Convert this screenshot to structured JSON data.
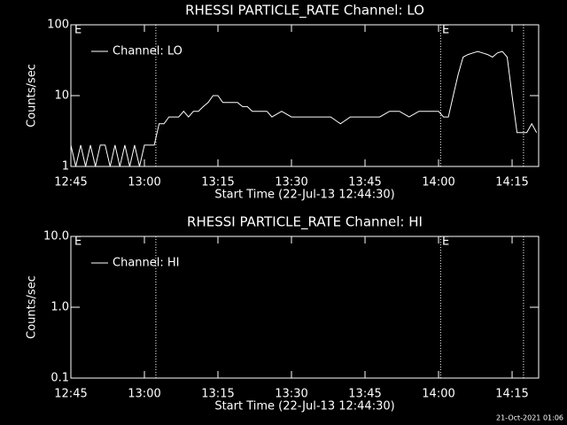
{
  "chart_data": [
    {
      "type": "line",
      "title": "RHESSI PARTICLE_RATE Channel: LO",
      "ylabel": "Counts/sec",
      "xlabel": "Start Time (22-Jul-13 12:44:30)",
      "x": [
        "12:45",
        "12:46",
        "12:47",
        "12:48",
        "12:49",
        "12:50",
        "12:51",
        "12:52",
        "12:53",
        "12:54",
        "12:55",
        "12:56",
        "12:57",
        "12:58",
        "12:59",
        "13:00",
        "13:01",
        "13:02",
        "13:03",
        "13:04",
        "13:05",
        "13:06",
        "13:07",
        "13:08",
        "13:09",
        "13:10",
        "13:11",
        "13:12",
        "13:13",
        "13:14",
        "13:15",
        "13:16",
        "13:17",
        "13:18",
        "13:19",
        "13:20",
        "13:21",
        "13:22",
        "13:23",
        "13:24",
        "13:25",
        "13:26",
        "13:28",
        "13:30",
        "13:32",
        "13:34",
        "13:36",
        "13:38",
        "13:40",
        "13:42",
        "13:44",
        "13:46",
        "13:48",
        "13:50",
        "13:52",
        "13:54",
        "13:56",
        "13:58",
        "14:00",
        "14:01",
        "14:02",
        "14:03",
        "14:04",
        "14:05",
        "14:06",
        "14:07",
        "14:08",
        "14:09",
        "14:10",
        "14:11",
        "14:12",
        "14:13",
        "14:14",
        "14:15",
        "14:16",
        "14:17",
        "14:18",
        "14:19",
        "14:20"
      ],
      "series": [
        {
          "name": "Channel: LO",
          "color": "#ffffff",
          "values": [
            2,
            1,
            2,
            1,
            2,
            1,
            2,
            2,
            1,
            2,
            1,
            2,
            1,
            2,
            1,
            2,
            2,
            2,
            4,
            4,
            5,
            5,
            5,
            6,
            5,
            6,
            6,
            7,
            8,
            10,
            10,
            8,
            8,
            8,
            8,
            7,
            7,
            6,
            6,
            6,
            6,
            5,
            6,
            5,
            5,
            5,
            5,
            5,
            4,
            5,
            5,
            5,
            5,
            6,
            6,
            5,
            6,
            6,
            6,
            5,
            5,
            10,
            20,
            35,
            38,
            40,
            42,
            40,
            38,
            35,
            40,
            42,
            35,
            10,
            3,
            3,
            3,
            4,
            3
          ]
        }
      ],
      "xlim": [
        "12:45",
        "14:20:25"
      ],
      "xticks": [
        "12:45",
        "13:00",
        "13:15",
        "13:30",
        "13:45",
        "14:00",
        "14:15"
      ],
      "ylim": [
        1,
        100
      ],
      "yticks": [
        1,
        10,
        100
      ],
      "log_y": true,
      "vlines": [
        "13:02:20",
        "14:00:25",
        "14:17:20"
      ],
      "annotations": [
        {
          "text": "E",
          "x": "12:45"
        },
        {
          "text": "E",
          "x": "14:00"
        }
      ]
    },
    {
      "type": "line",
      "title": "RHESSI PARTICLE_RATE Channel: HI",
      "ylabel": "Counts/sec",
      "xlabel": "Start Time (22-Jul-13 12:44:30)",
      "x": [],
      "series": [
        {
          "name": "Channel: HI",
          "color": "#ffffff",
          "values": []
        }
      ],
      "xlim": [
        "12:45",
        "14:20:25"
      ],
      "xticks": [
        "12:45",
        "13:00",
        "13:15",
        "13:30",
        "13:45",
        "14:00",
        "14:15"
      ],
      "ylim": [
        0.1,
        10
      ],
      "yticks": [
        0.1,
        {
          "value": 1,
          "label": "1.0"
        },
        {
          "value": 10,
          "label": "10.0"
        }
      ],
      "log_y": true,
      "vlines": [
        "13:02:20",
        "14:00:25",
        "14:17:20"
      ],
      "annotations": [
        {
          "text": "E",
          "x": "12:45"
        },
        {
          "text": "E",
          "x": "14:00"
        }
      ]
    }
  ],
  "footer": "21-Oct-2021 01:06"
}
